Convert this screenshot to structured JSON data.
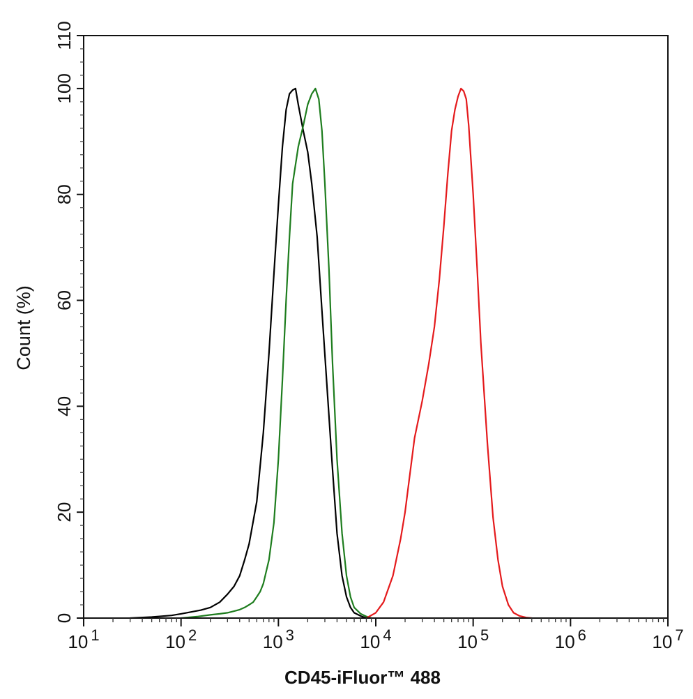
{
  "chart_data": {
    "type": "line",
    "title": "",
    "xlabel": "CD45-iFluor™ 488",
    "ylabel": "Count  (%)",
    "xscale": "log",
    "xlim": [
      10,
      10000000
    ],
    "ylim": [
      0,
      110
    ],
    "x_ticks": [
      {
        "base": "10",
        "exp": "1"
      },
      {
        "base": "10",
        "exp": "2"
      },
      {
        "base": "10",
        "exp": "3"
      },
      {
        "base": "10",
        "exp": "4"
      },
      {
        "base": "10",
        "exp": "5"
      },
      {
        "base": "10",
        "exp": "6"
      },
      {
        "base": "10",
        "exp": "7"
      }
    ],
    "y_ticks": [
      "0",
      "20",
      "40",
      "60",
      "80",
      "100",
      "110"
    ],
    "y_tick_values": [
      0,
      20,
      40,
      60,
      80,
      100,
      110
    ],
    "grid": false,
    "series": [
      {
        "color": "#000000",
        "x": [
          30,
          50,
          80,
          100,
          130,
          160,
          200,
          250,
          300,
          350,
          400,
          450,
          500,
          600,
          700,
          800,
          900,
          1000,
          1100,
          1200,
          1300,
          1400,
          1500,
          1600,
          1800,
          2000,
          2200,
          2500,
          2800,
          3200,
          3600,
          4000,
          4500,
          5000,
          5500,
          6000,
          7000,
          8000
        ],
        "y": [
          0,
          0.2,
          0.5,
          0.8,
          1.2,
          1.5,
          2,
          3,
          4.5,
          6,
          8,
          11,
          14,
          22,
          35,
          50,
          65,
          78,
          89,
          96,
          99,
          99.7,
          100,
          97,
          92,
          88,
          82,
          72,
          58,
          42,
          28,
          16,
          8,
          4,
          2,
          1,
          0.4,
          0
        ]
      },
      {
        "color": "#1e7d1e",
        "x": [
          100,
          150,
          200,
          250,
          300,
          350,
          400,
          450,
          500,
          550,
          600,
          650,
          700,
          800,
          900,
          1000,
          1100,
          1200,
          1300,
          1400,
          1600,
          1800,
          2000,
          2200,
          2400,
          2600,
          2800,
          3000,
          3300,
          3600,
          4000,
          4500,
          5000,
          5500,
          6000,
          7000,
          8000,
          9000
        ],
        "y": [
          0,
          0.3,
          0.6,
          0.8,
          1,
          1.3,
          1.6,
          2,
          2.5,
          3,
          4,
          5,
          6.5,
          11,
          18,
          30,
          45,
          60,
          72,
          82,
          89,
          93,
          97,
          99,
          100,
          98,
          92,
          82,
          66,
          48,
          30,
          16,
          8,
          4,
          2,
          0.8,
          0.3,
          0
        ]
      },
      {
        "color": "#e41a1c",
        "x": [
          8000,
          10000,
          12000,
          15000,
          18000,
          20000,
          22000,
          25000,
          30000,
          35000,
          40000,
          45000,
          50000,
          55000,
          60000,
          65000,
          70000,
          75000,
          80000,
          85000,
          90000,
          100000,
          110000,
          120000,
          140000,
          160000,
          180000,
          200000,
          230000,
          260000,
          300000,
          350000,
          400000
        ],
        "y": [
          0,
          1,
          3,
          8,
          15,
          20,
          26,
          34,
          41,
          48,
          55,
          64,
          74,
          84,
          92,
          96,
          98.5,
          100,
          99.5,
          98,
          93,
          80,
          66,
          52,
          33,
          19,
          11,
          6,
          2.5,
          1,
          0.4,
          0.1,
          0
        ]
      }
    ]
  }
}
